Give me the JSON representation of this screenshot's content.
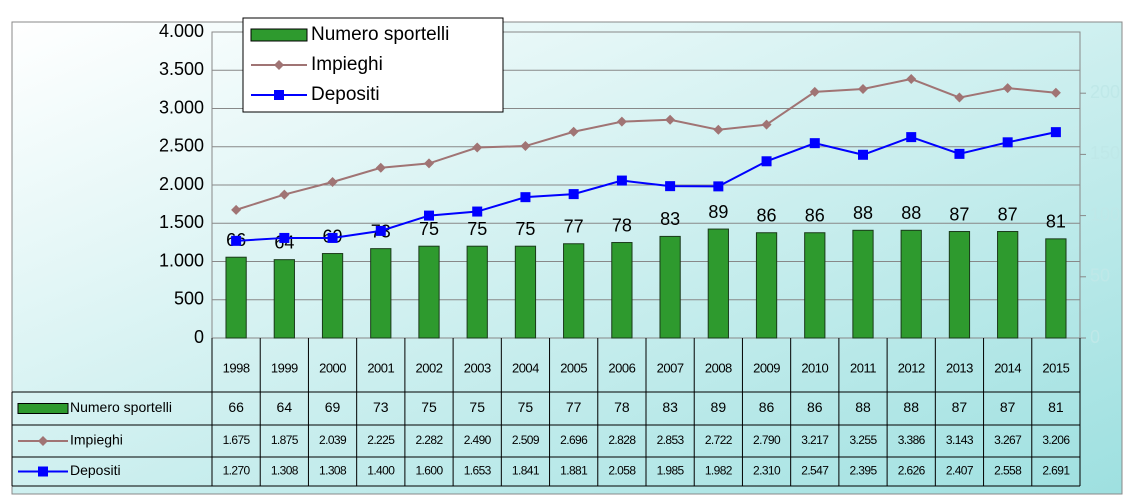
{
  "chart_data": {
    "type": "bar-line",
    "categories": [
      "1998",
      "1999",
      "2000",
      "2001",
      "2002",
      "2003",
      "2004",
      "2005",
      "2006",
      "2007",
      "2008",
      "2009",
      "2010",
      "2011",
      "2012",
      "2013",
      "2014",
      "2015"
    ],
    "series": [
      {
        "name": "Numero sportelli",
        "type": "bar",
        "axis": "y2",
        "color": "#2e9a2e",
        "values": [
          66,
          64,
          69,
          73,
          75,
          75,
          75,
          77,
          78,
          83,
          89,
          86,
          86,
          88,
          88,
          87,
          87,
          81
        ]
      },
      {
        "name": "Impieghi",
        "type": "line",
        "marker": "diamond",
        "color": "#a07474",
        "values": [
          1675,
          1875,
          2039,
          2225,
          2282,
          2490,
          2509,
          2696,
          2828,
          2853,
          2722,
          2790,
          3217,
          3255,
          3386,
          3143,
          3267,
          3206
        ],
        "value_labels": [
          "1.675",
          "1.875",
          "2.039",
          "2.225",
          "2.282",
          "2.490",
          "2.509",
          "2.696",
          "2.828",
          "2.853",
          "2.722",
          "2.790",
          "3.217",
          "3.255",
          "3.386",
          "3.143",
          "3.267",
          "3.206"
        ]
      },
      {
        "name": "Depositi",
        "type": "line",
        "marker": "square",
        "color": "#0000ff",
        "values": [
          1270,
          1308,
          1308,
          1400,
          1600,
          1653,
          1841,
          1881,
          2058,
          1985,
          1982,
          2310,
          2547,
          2395,
          2626,
          2407,
          2558,
          2691
        ],
        "value_labels": [
          "1.270",
          "1.308",
          "1.308",
          "1.400",
          "1.600",
          "1.653",
          "1.841",
          "1.881",
          "2.058",
          "1.985",
          "1.982",
          "2.310",
          "2.547",
          "2.395",
          "2.626",
          "2.407",
          "2.558",
          "2.691"
        ]
      }
    ],
    "ylim": [
      0,
      4000
    ],
    "yticks": [
      0,
      500,
      {
        "value": 1000,
        "label": "1.000"
      },
      {
        "value": 1500,
        "label": "1.500"
      },
      {
        "value": 2000,
        "label": "2.000"
      },
      {
        "value": 2500,
        "label": "2.500"
      },
      {
        "value": 3000,
        "label": "3.000"
      },
      {
        "value": 3500,
        "label": "3.500"
      },
      {
        "value": 4000,
        "label": "4.000"
      }
    ],
    "y2lim": [
      0,
      250
    ],
    "y2ticks": [
      0,
      50,
      100,
      150,
      200
    ],
    "legend": "top-left",
    "data_table": true
  }
}
